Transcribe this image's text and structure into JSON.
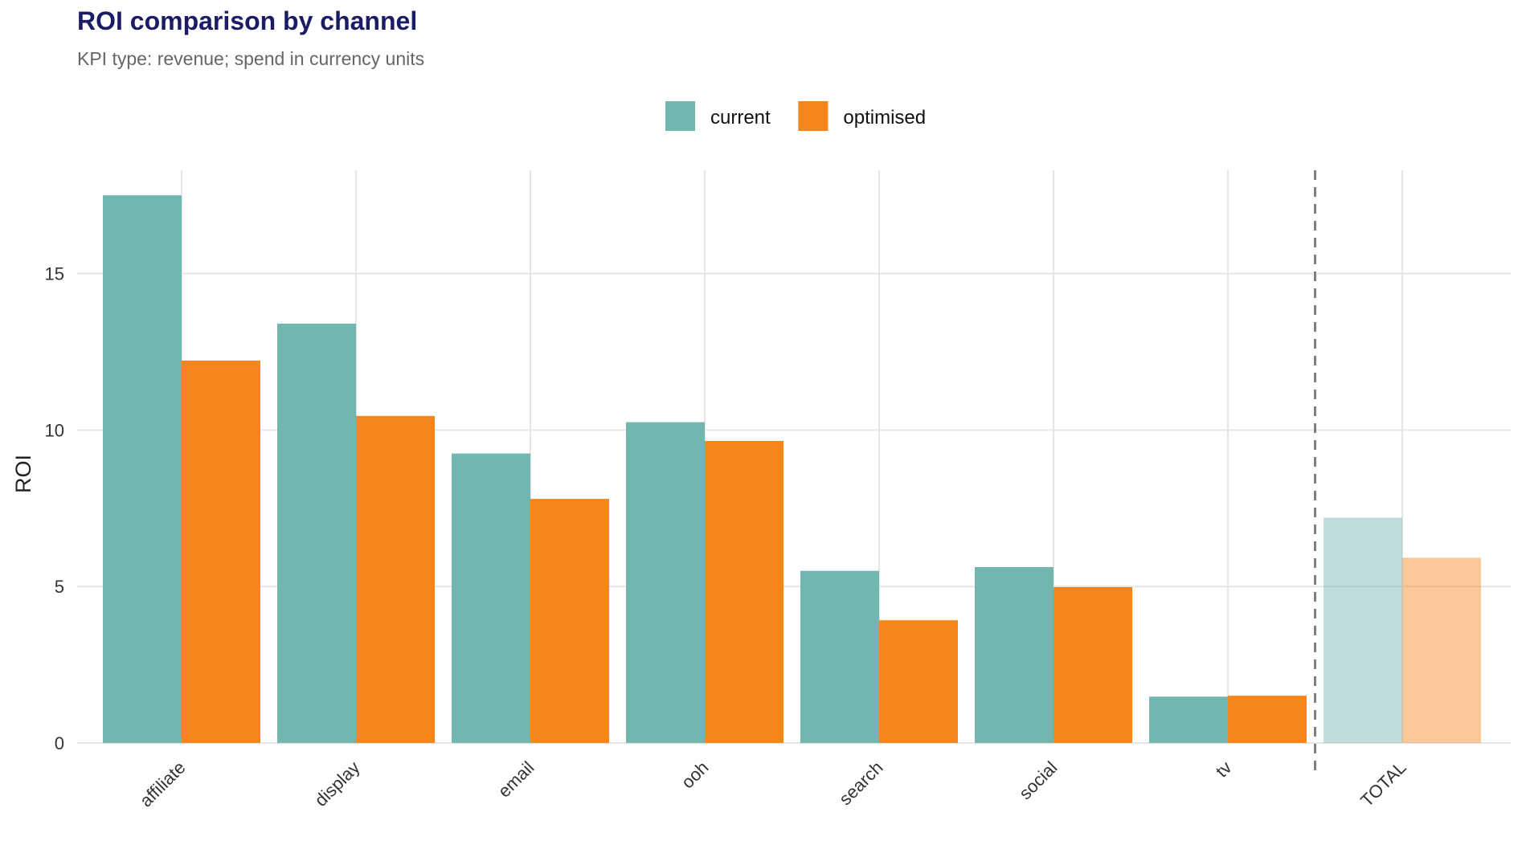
{
  "chart_data": {
    "type": "bar",
    "title": "ROI comparison by channel",
    "subtitle": "KPI type: revenue; spend in currency units",
    "ylabel": "ROI",
    "xlabel": "",
    "categories": [
      "affiliate",
      "display",
      "email",
      "ooh",
      "search",
      "social",
      "tv",
      "TOTAL"
    ],
    "series": [
      {
        "name": "current",
        "color": "#72b6b0",
        "values": [
          17.5,
          13.4,
          9.25,
          10.25,
          5.5,
          5.62,
          1.48,
          7.2
        ]
      },
      {
        "name": "optimised",
        "color": "#f4861c",
        "values": [
          12.22,
          10.45,
          7.8,
          9.65,
          3.92,
          4.98,
          1.51,
          5.92
        ]
      }
    ],
    "highlighted_category": "TOTAL",
    "highlight_note": "TOTAL bars drawn faded, separated by a dashed vertical line",
    "ylim": [
      0,
      18.3
    ],
    "yticks": [
      0,
      5,
      10,
      15
    ],
    "grid": true,
    "legend_position": "top"
  }
}
